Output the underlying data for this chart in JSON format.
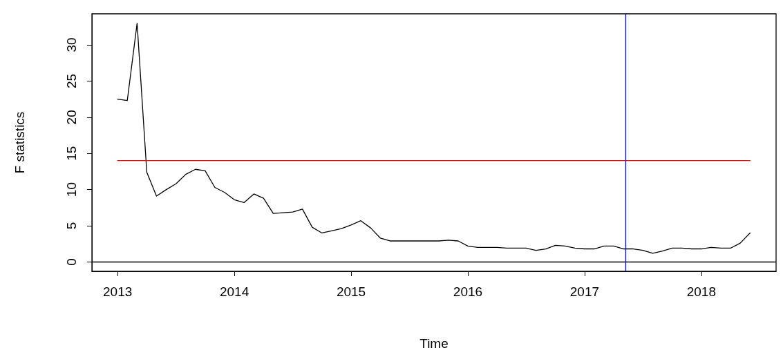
{
  "chart_data": {
    "type": "line",
    "xlabel": "Time",
    "ylabel": "F statistics",
    "xlim": [
      2012.78,
      2018.64
    ],
    "xticks": [
      2013,
      2014,
      2015,
      2016,
      2017,
      2018
    ],
    "ylim": [
      -1.3,
      34.3
    ],
    "yticks": [
      0,
      5,
      10,
      15,
      20,
      25,
      30
    ],
    "marker": "none",
    "line_style": "solid",
    "series": [
      {
        "color": "#000000",
        "x": [
          2013,
          2013.083,
          2013.167,
          2013.25,
          2013.333,
          2013.417,
          2013.5,
          2013.583,
          2013.667,
          2013.75,
          2013.833,
          2013.917,
          2014,
          2014.083,
          2014.167,
          2014.25,
          2014.333,
          2014.417,
          2014.5,
          2014.583,
          2014.667,
          2014.75,
          2014.833,
          2014.917,
          2015,
          2015.083,
          2015.167,
          2015.25,
          2015.333,
          2015.417,
          2015.5,
          2015.583,
          2015.667,
          2015.75,
          2015.833,
          2015.917,
          2016,
          2016.083,
          2016.167,
          2016.25,
          2016.333,
          2016.417,
          2016.5,
          2016.583,
          2016.667,
          2016.75,
          2016.833,
          2016.917,
          2017,
          2017.083,
          2017.167,
          2017.25,
          2017.333,
          2017.417,
          2017.5,
          2017.583,
          2017.667,
          2017.75,
          2017.833,
          2017.917,
          2018,
          2018.083,
          2018.167,
          2018.25,
          2018.333,
          2018.417
        ],
        "values": [
          22.5,
          22.3,
          33,
          12.4,
          9.1,
          10,
          10.8,
          12.1,
          12.8,
          12.6,
          10.3,
          9.6,
          8.6,
          8.2,
          9.4,
          8.8,
          6.7,
          6.8,
          6.9,
          7.3,
          4.8,
          4,
          4.3,
          4.6,
          5.1,
          5.7,
          4.7,
          3.3,
          2.9,
          2.9,
          2.9,
          2.9,
          2.9,
          2.9,
          3,
          2.9,
          2.2,
          2,
          2,
          2,
          1.9,
          1.9,
          1.9,
          1.6,
          1.8,
          2.3,
          2.2,
          1.9,
          1.8,
          1.8,
          2.2,
          2.2,
          1.8,
          1.8,
          1.6,
          1.2,
          1.5,
          1.9,
          1.9,
          1.8,
          1.8,
          2,
          1.9,
          1.9,
          2.6,
          4
        ]
      },
      {
        "color": "#ff0000",
        "x": [
          2013,
          2018.417
        ],
        "values": [
          14,
          14
        ]
      }
    ],
    "ref_lines": [
      {
        "axis": "y",
        "value": 0,
        "color": "#000000"
      },
      {
        "axis": "x",
        "value": 2017.35,
        "color": "#0000ff"
      }
    ]
  }
}
